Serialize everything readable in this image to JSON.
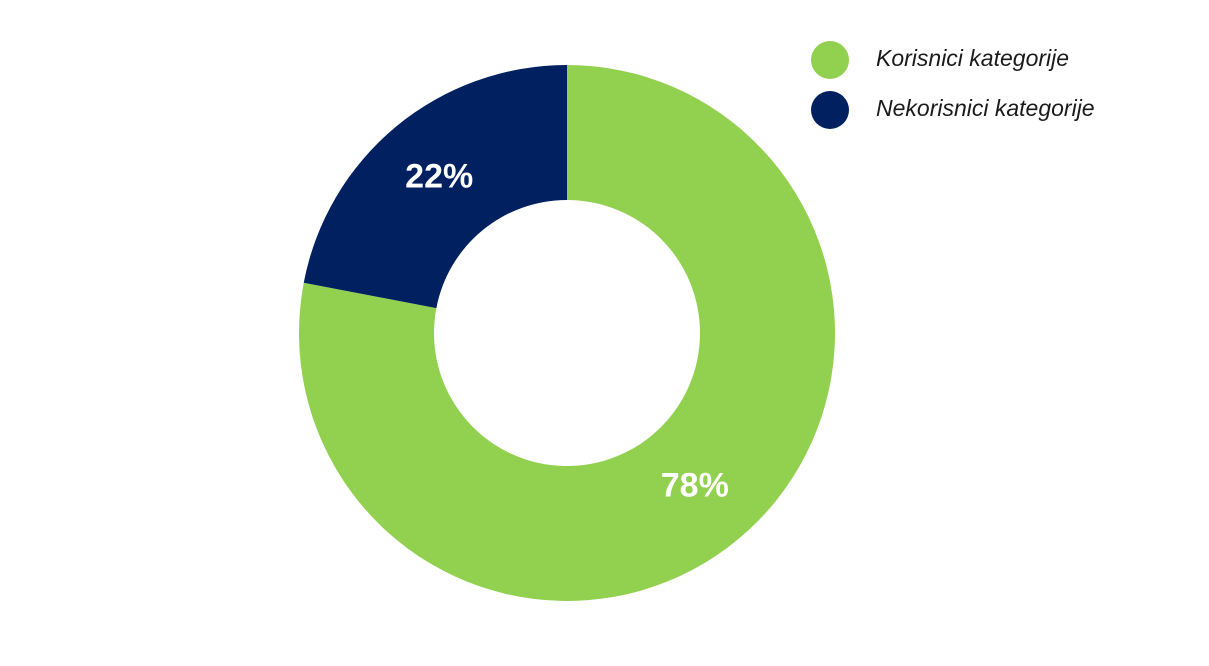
{
  "chart_data": {
    "type": "pie",
    "donut": true,
    "categories": [
      "Korisnici kategorije",
      "Nekorisnici kategorije"
    ],
    "values": [
      78,
      22
    ],
    "value_labels": [
      "78%",
      "22%"
    ],
    "colors": [
      "#92d050",
      "#002060"
    ],
    "legend": "top-right"
  }
}
